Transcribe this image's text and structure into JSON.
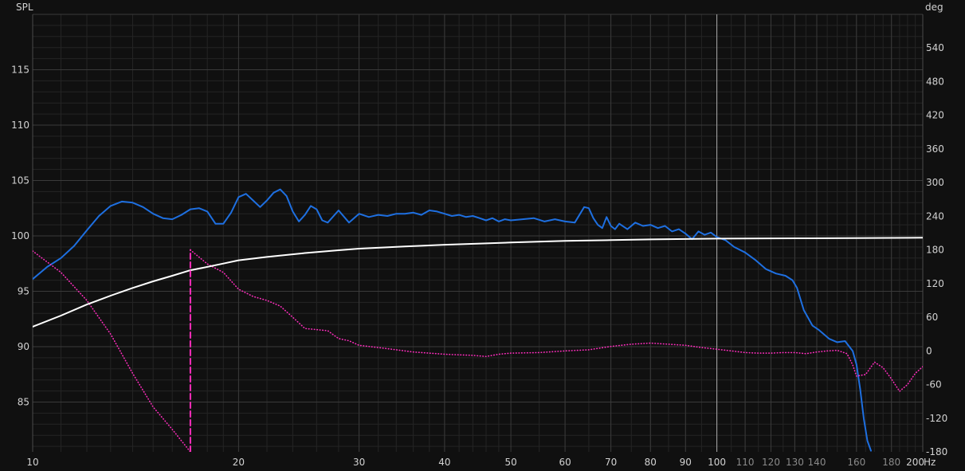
{
  "chart_data": {
    "type": "line",
    "title": "",
    "x_scale": "log",
    "x_unit": "Hz",
    "xlim": [
      10,
      200
    ],
    "ylim_left": [
      80.5,
      120
    ],
    "ylim_right": [
      -180,
      600
    ],
    "ylabel_left": "SPL",
    "ylabel_right": "deg",
    "grid": true,
    "x_major_ticks": [
      {
        "value": 10,
        "label": "10"
      },
      {
        "value": 20,
        "label": "20"
      },
      {
        "value": 30,
        "label": "30"
      },
      {
        "value": 40,
        "label": "40"
      },
      {
        "value": 50,
        "label": "50"
      },
      {
        "value": 60,
        "label": "60"
      },
      {
        "value": 70,
        "label": "70"
      },
      {
        "value": 80,
        "label": "80"
      },
      {
        "value": 90,
        "label": "90"
      },
      {
        "value": 100,
        "label": "100"
      },
      {
        "value": 200,
        "label": "200"
      }
    ],
    "x_minor_ticks": [
      {
        "value": 110,
        "label": "110"
      },
      {
        "value": 120,
        "label": "120"
      },
      {
        "value": 130,
        "label": "130"
      },
      {
        "value": 140,
        "label": "140"
      },
      {
        "value": 160,
        "label": "160"
      },
      {
        "value": 180,
        "label": "180"
      }
    ],
    "left_ticks": [
      {
        "value": 85,
        "label": "85"
      },
      {
        "value": 90,
        "label": "90"
      },
      {
        "value": 95,
        "label": "95"
      },
      {
        "value": 100,
        "label": "100"
      },
      {
        "value": 105,
        "label": "105"
      },
      {
        "value": 110,
        "label": "110"
      },
      {
        "value": 115,
        "label": "115"
      }
    ],
    "right_ticks": [
      {
        "value": -180,
        "label": "-180"
      },
      {
        "value": -120,
        "label": "-120"
      },
      {
        "value": -60,
        "label": "-60"
      },
      {
        "value": 0,
        "label": "0"
      },
      {
        "value": 60,
        "label": "60"
      },
      {
        "value": 120,
        "label": "120"
      },
      {
        "value": 180,
        "label": "180"
      },
      {
        "value": 240,
        "label": "240"
      },
      {
        "value": 300,
        "label": "300"
      },
      {
        "value": 360,
        "label": "360"
      },
      {
        "value": 420,
        "label": "420"
      },
      {
        "value": 480,
        "label": "480"
      },
      {
        "value": 540,
        "label": "540"
      }
    ],
    "marker_line_x": 100,
    "series": [
      {
        "key": "spl",
        "color": "#1e6fe0",
        "style": "solid",
        "axis": "left",
        "points": [
          [
            10,
            96.1
          ],
          [
            10.5,
            97.2
          ],
          [
            11,
            98.0
          ],
          [
            11.5,
            99.1
          ],
          [
            12,
            100.5
          ],
          [
            12.5,
            101.8
          ],
          [
            13,
            102.7
          ],
          [
            13.5,
            103.1
          ],
          [
            14,
            103.0
          ],
          [
            14.5,
            102.6
          ],
          [
            15,
            102.0
          ],
          [
            15.5,
            101.6
          ],
          [
            16,
            101.5
          ],
          [
            16.5,
            101.9
          ],
          [
            17,
            102.4
          ],
          [
            17.5,
            102.5
          ],
          [
            18,
            102.2
          ],
          [
            18.5,
            101.1
          ],
          [
            19,
            101.1
          ],
          [
            19.5,
            102.1
          ],
          [
            20,
            103.5
          ],
          [
            20.5,
            103.8
          ],
          [
            21,
            103.2
          ],
          [
            21.5,
            102.6
          ],
          [
            22,
            103.2
          ],
          [
            22.5,
            103.9
          ],
          [
            23,
            104.2
          ],
          [
            23.5,
            103.6
          ],
          [
            24,
            102.2
          ],
          [
            24.5,
            101.3
          ],
          [
            25,
            101.9
          ],
          [
            25.5,
            102.7
          ],
          [
            26,
            102.4
          ],
          [
            26.5,
            101.4
          ],
          [
            27,
            101.2
          ],
          [
            28,
            102.3
          ],
          [
            29,
            101.2
          ],
          [
            30,
            102.0
          ],
          [
            31,
            101.7
          ],
          [
            32,
            101.9
          ],
          [
            33,
            101.8
          ],
          [
            34,
            102.0
          ],
          [
            35,
            102.0
          ],
          [
            36,
            102.1
          ],
          [
            37,
            101.9
          ],
          [
            38,
            102.3
          ],
          [
            39,
            102.2
          ],
          [
            40,
            102.0
          ],
          [
            41,
            101.8
          ],
          [
            42,
            101.9
          ],
          [
            43,
            101.7
          ],
          [
            44,
            101.8
          ],
          [
            45,
            101.6
          ],
          [
            46,
            101.4
          ],
          [
            47,
            101.6
          ],
          [
            48,
            101.3
          ],
          [
            49,
            101.5
          ],
          [
            50,
            101.4
          ],
          [
            52,
            101.5
          ],
          [
            54,
            101.6
          ],
          [
            56,
            101.3
          ],
          [
            58,
            101.5
          ],
          [
            60,
            101.3
          ],
          [
            62,
            101.2
          ],
          [
            64,
            102.6
          ],
          [
            65,
            102.5
          ],
          [
            66,
            101.6
          ],
          [
            67,
            101.0
          ],
          [
            68,
            100.7
          ],
          [
            69,
            101.7
          ],
          [
            70,
            100.9
          ],
          [
            71,
            100.6
          ],
          [
            72,
            101.1
          ],
          [
            74,
            100.6
          ],
          [
            76,
            101.2
          ],
          [
            78,
            100.9
          ],
          [
            80,
            101.0
          ],
          [
            82,
            100.7
          ],
          [
            84,
            100.9
          ],
          [
            86,
            100.4
          ],
          [
            88,
            100.6
          ],
          [
            90,
            100.2
          ],
          [
            92,
            99.7
          ],
          [
            94,
            100.4
          ],
          [
            96,
            100.1
          ],
          [
            98,
            100.3
          ],
          [
            100,
            99.9
          ],
          [
            103,
            99.6
          ],
          [
            106,
            99.0
          ],
          [
            110,
            98.5
          ],
          [
            114,
            97.8
          ],
          [
            118,
            97.0
          ],
          [
            122,
            96.6
          ],
          [
            126,
            96.4
          ],
          [
            129,
            96.0
          ],
          [
            131,
            95.3
          ],
          [
            134,
            93.3
          ],
          [
            138,
            91.9
          ],
          [
            141,
            91.5
          ],
          [
            146,
            90.7
          ],
          [
            150,
            90.4
          ],
          [
            154,
            90.5
          ],
          [
            158,
            89.6
          ],
          [
            160,
            88.4
          ],
          [
            162,
            86.2
          ],
          [
            164,
            83.5
          ],
          [
            166,
            81.5
          ],
          [
            168,
            80.6
          ]
        ]
      },
      {
        "key": "phase",
        "color": "#ff2dbe",
        "style": "dotted",
        "axis": "right",
        "segments": [
          [
            [
              10,
              178
            ],
            [
              11,
              140
            ],
            [
              12,
              90
            ],
            [
              13,
              30
            ],
            [
              14,
              -40
            ],
            [
              15,
              -100
            ],
            [
              16,
              -140
            ],
            [
              17,
              -180
            ]
          ],
          [
            [
              17,
              180
            ],
            [
              18,
              155
            ],
            [
              19,
              140
            ],
            [
              20,
              110
            ],
            [
              21,
              97
            ],
            [
              22,
              90
            ],
            [
              23,
              80
            ],
            [
              24,
              60
            ],
            [
              25,
              40
            ],
            [
              26,
              38
            ],
            [
              27,
              36
            ],
            [
              28,
              22
            ],
            [
              29,
              18
            ],
            [
              30,
              10
            ],
            [
              32,
              6
            ],
            [
              34,
              2
            ],
            [
              36,
              -2
            ],
            [
              38,
              -4
            ],
            [
              40,
              -6
            ],
            [
              42,
              -7
            ],
            [
              44,
              -8
            ],
            [
              46,
              -10
            ],
            [
              48,
              -6
            ],
            [
              50,
              -4
            ],
            [
              55,
              -3
            ],
            [
              60,
              0
            ],
            [
              65,
              2
            ],
            [
              70,
              8
            ],
            [
              75,
              12
            ],
            [
              80,
              14
            ],
            [
              85,
              12
            ],
            [
              90,
              10
            ],
            [
              95,
              6
            ],
            [
              100,
              3
            ],
            [
              105,
              0
            ],
            [
              110,
              -3
            ],
            [
              115,
              -4
            ],
            [
              120,
              -4
            ],
            [
              125,
              -3
            ],
            [
              130,
              -3
            ],
            [
              135,
              -5
            ],
            [
              140,
              -2
            ],
            [
              145,
              0
            ],
            [
              150,
              1
            ],
            [
              155,
              -5
            ],
            [
              158,
              -25
            ],
            [
              160,
              -45
            ],
            [
              165,
              -42
            ],
            [
              170,
              -20
            ],
            [
              175,
              -30
            ],
            [
              180,
              -50
            ],
            [
              185,
              -72
            ],
            [
              190,
              -60
            ],
            [
              195,
              -40
            ],
            [
              200,
              -28
            ]
          ]
        ]
      },
      {
        "key": "reference",
        "color": "#ffffff",
        "style": "solid",
        "axis": "left",
        "points": [
          [
            10,
            91.8
          ],
          [
            11,
            92.8
          ],
          [
            12,
            93.8
          ],
          [
            13,
            94.6
          ],
          [
            14,
            95.3
          ],
          [
            15,
            95.9
          ],
          [
            16,
            96.4
          ],
          [
            17,
            96.9
          ],
          [
            18,
            97.2
          ],
          [
            19,
            97.5
          ],
          [
            20,
            97.8
          ],
          [
            22,
            98.1
          ],
          [
            25,
            98.45
          ],
          [
            28,
            98.7
          ],
          [
            30,
            98.85
          ],
          [
            35,
            99.05
          ],
          [
            40,
            99.2
          ],
          [
            50,
            99.4
          ],
          [
            60,
            99.55
          ],
          [
            70,
            99.62
          ],
          [
            80,
            99.68
          ],
          [
            90,
            99.72
          ],
          [
            100,
            99.75
          ],
          [
            130,
            99.78
          ],
          [
            160,
            99.8
          ],
          [
            200,
            99.83
          ]
        ]
      },
      {
        "key": "phase-wrap",
        "color": "#ff2dbe",
        "style": "dashed",
        "axis": "right",
        "points": [
          [
            17,
            -180
          ],
          [
            17,
            180
          ]
        ]
      }
    ]
  }
}
